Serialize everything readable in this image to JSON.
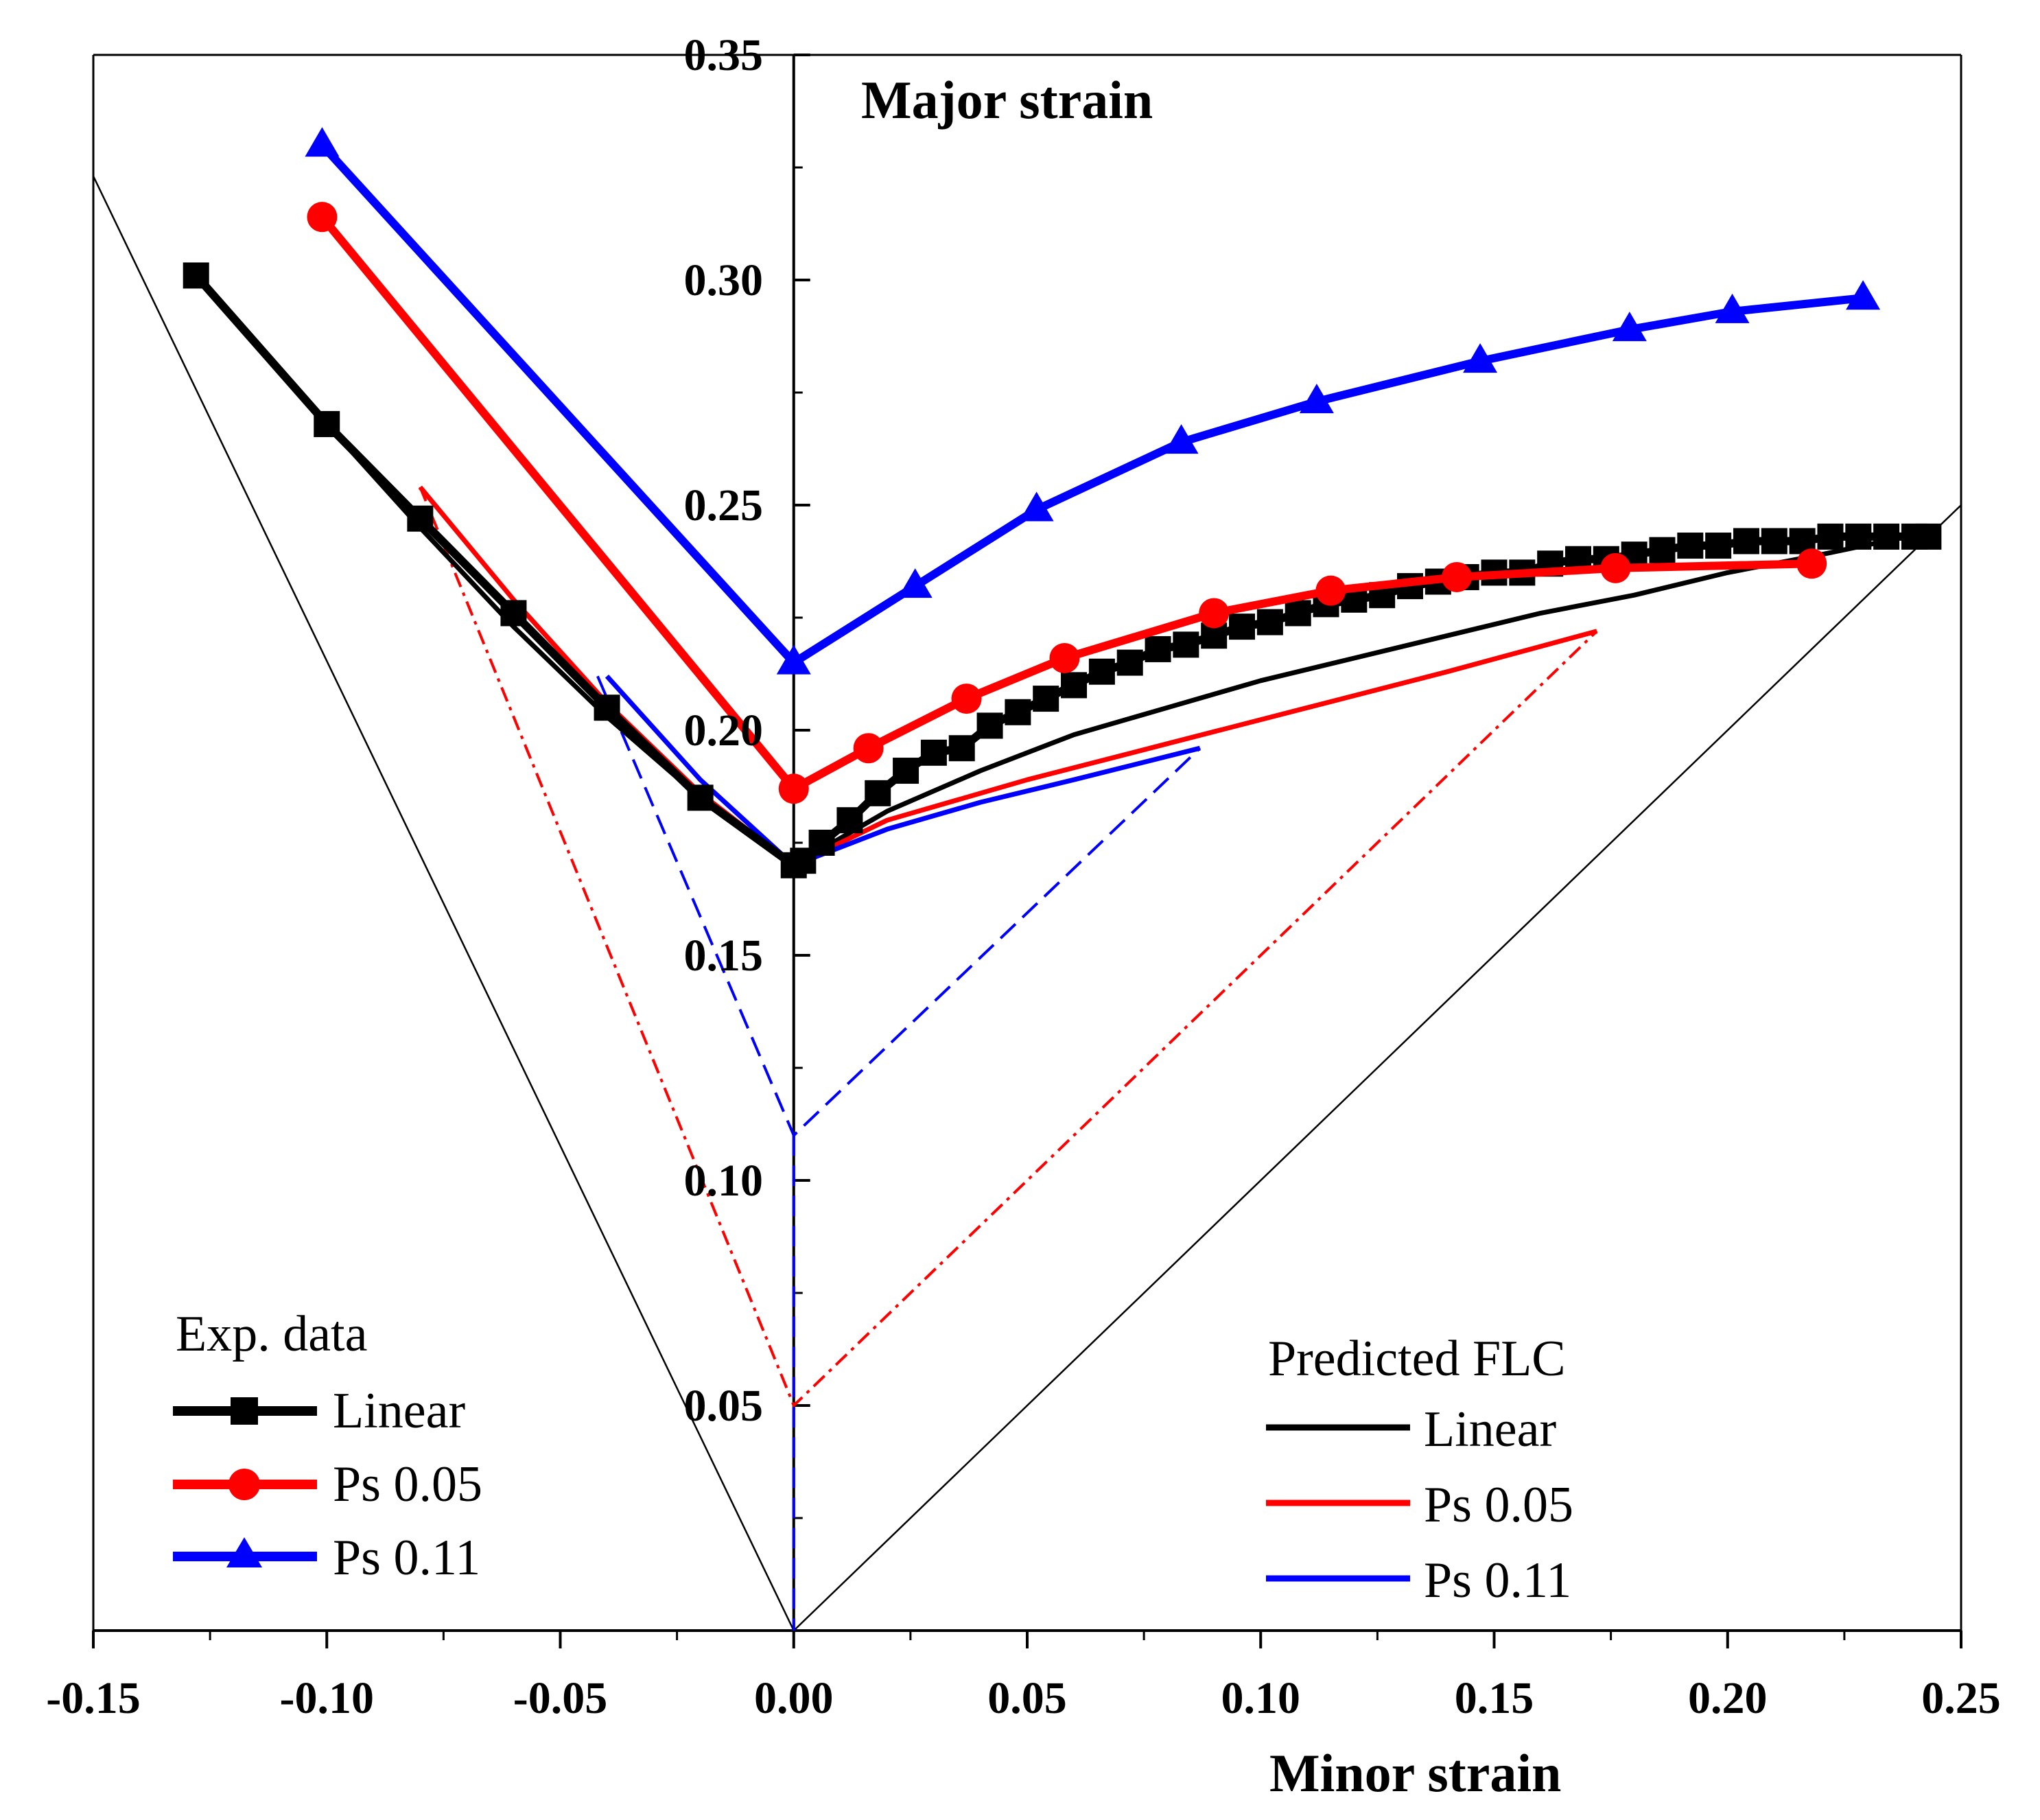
{
  "chart_data": {
    "type": "line",
    "xlabel": "Minor strain",
    "ylabel": "Major strain",
    "xlim": [
      -0.15,
      0.25
    ],
    "ylim": [
      0.0,
      0.35
    ],
    "x_ticks": [
      "-0.15",
      "-0.10",
      "-0.05",
      "0.00",
      "0.05",
      "0.10",
      "0.15",
      "0.20",
      "0.25"
    ],
    "y_ticks": [
      "0.05",
      "0.10",
      "0.15",
      "0.20",
      "0.25",
      "0.30",
      "0.35"
    ],
    "x_tick_values": [
      -0.15,
      -0.1,
      -0.05,
      0.0,
      0.05,
      0.1,
      0.15,
      0.2,
      0.25
    ],
    "y_tick_values": [
      0.05,
      0.1,
      0.15,
      0.2,
      0.25,
      0.3,
      0.35
    ],
    "grid": false,
    "legends": [
      {
        "title": "Exp. data",
        "placement": "bottom-left",
        "entries": [
          "Linear",
          "Ps 0.05",
          "Ps 0.11"
        ]
      },
      {
        "title": "Predicted FLC",
        "placement": "bottom-right",
        "entries": [
          "Linear",
          "Ps 0.05",
          "Ps 0.11"
        ]
      }
    ],
    "colors": {
      "linear": "#000000",
      "ps005": "#ff0000",
      "ps011": "#0000ff"
    },
    "exp_series": [
      {
        "name": "Linear",
        "color": "#000000",
        "marker": "square",
        "points": [
          [
            -0.128,
            0.301
          ],
          [
            -0.1,
            0.268
          ],
          [
            -0.08,
            0.247
          ],
          [
            -0.06,
            0.226
          ],
          [
            -0.04,
            0.205
          ],
          [
            -0.02,
            0.185
          ],
          [
            0.0,
            0.17
          ],
          [
            0.002,
            0.171
          ],
          [
            0.006,
            0.175
          ],
          [
            0.012,
            0.18
          ],
          [
            0.018,
            0.186
          ],
          [
            0.024,
            0.191
          ],
          [
            0.03,
            0.195
          ],
          [
            0.036,
            0.196
          ],
          [
            0.042,
            0.201
          ],
          [
            0.048,
            0.204
          ],
          [
            0.054,
            0.207
          ],
          [
            0.06,
            0.21
          ],
          [
            0.066,
            0.213
          ],
          [
            0.072,
            0.215
          ],
          [
            0.078,
            0.218
          ],
          [
            0.084,
            0.219
          ],
          [
            0.09,
            0.221
          ],
          [
            0.096,
            0.223
          ],
          [
            0.102,
            0.224
          ],
          [
            0.108,
            0.226
          ],
          [
            0.114,
            0.228
          ],
          [
            0.12,
            0.229
          ],
          [
            0.126,
            0.23
          ],
          [
            0.132,
            0.232
          ],
          [
            0.138,
            0.233
          ],
          [
            0.144,
            0.234
          ],
          [
            0.15,
            0.235
          ],
          [
            0.156,
            0.235
          ],
          [
            0.162,
            0.237
          ],
          [
            0.168,
            0.238
          ],
          [
            0.174,
            0.238
          ],
          [
            0.18,
            0.239
          ],
          [
            0.186,
            0.24
          ],
          [
            0.192,
            0.241
          ],
          [
            0.198,
            0.241
          ],
          [
            0.204,
            0.242
          ],
          [
            0.21,
            0.242
          ],
          [
            0.216,
            0.242
          ],
          [
            0.222,
            0.243
          ],
          [
            0.228,
            0.243
          ],
          [
            0.234,
            0.243
          ],
          [
            0.24,
            0.243
          ],
          [
            0.243,
            0.243
          ]
        ]
      },
      {
        "name": "Ps 0.05",
        "color": "#ff0000",
        "marker": "circle",
        "points": [
          [
            -0.101,
            0.314
          ],
          [
            0.0,
            0.187
          ],
          [
            0.016,
            0.196
          ],
          [
            0.037,
            0.207
          ],
          [
            0.058,
            0.216
          ],
          [
            0.09,
            0.226
          ],
          [
            0.115,
            0.231
          ],
          [
            0.142,
            0.234
          ],
          [
            0.176,
            0.236
          ],
          [
            0.218,
            0.237
          ]
        ]
      },
      {
        "name": "Ps 0.11",
        "color": "#0000ff",
        "marker": "triangle",
        "points": [
          [
            -0.101,
            0.33
          ],
          [
            0.0,
            0.215
          ],
          [
            0.026,
            0.232
          ],
          [
            0.052,
            0.249
          ],
          [
            0.083,
            0.264
          ],
          [
            0.112,
            0.273
          ],
          [
            0.147,
            0.282
          ],
          [
            0.179,
            0.289
          ],
          [
            0.201,
            0.293
          ],
          [
            0.229,
            0.296
          ]
        ]
      }
    ],
    "predicted_series": [
      {
        "name": "Linear",
        "color": "#000000",
        "points": [
          [
            -0.128,
            0.301
          ],
          [
            -0.1,
            0.268
          ],
          [
            -0.08,
            0.245
          ],
          [
            -0.06,
            0.223
          ],
          [
            -0.04,
            0.203
          ],
          [
            -0.02,
            0.185
          ],
          [
            0.0,
            0.17
          ],
          [
            0.02,
            0.182
          ],
          [
            0.04,
            0.191
          ],
          [
            0.06,
            0.199
          ],
          [
            0.08,
            0.205
          ],
          [
            0.1,
            0.211
          ],
          [
            0.12,
            0.216
          ],
          [
            0.14,
            0.221
          ],
          [
            0.16,
            0.226
          ],
          [
            0.18,
            0.23
          ],
          [
            0.2,
            0.235
          ],
          [
            0.22,
            0.239
          ],
          [
            0.243,
            0.244
          ]
        ]
      },
      {
        "name": "Ps 0.05",
        "color": "#ff0000",
        "points": [
          [
            -0.08,
            0.254
          ],
          [
            -0.06,
            0.229
          ],
          [
            -0.04,
            0.206
          ],
          [
            -0.02,
            0.186
          ],
          [
            0.0,
            0.17
          ],
          [
            0.02,
            0.18
          ],
          [
            0.05,
            0.189
          ],
          [
            0.08,
            0.197
          ],
          [
            0.11,
            0.205
          ],
          [
            0.14,
            0.213
          ],
          [
            0.172,
            0.222
          ]
        ]
      },
      {
        "name": "Ps 0.11",
        "color": "#0000ff",
        "points": [
          [
            -0.04,
            0.212
          ],
          [
            -0.02,
            0.189
          ],
          [
            0.0,
            0.17
          ],
          [
            0.02,
            0.178
          ],
          [
            0.04,
            0.184
          ],
          [
            0.06,
            0.189
          ],
          [
            0.087,
            0.196
          ]
        ]
      }
    ],
    "limit_paths": [
      {
        "name": "Ps 0.05",
        "color": "#ff0000",
        "dash": "dash-dot",
        "points": [
          [
            -0.08,
            0.254
          ],
          [
            0.0,
            0.05
          ],
          [
            0.172,
            0.222
          ]
        ]
      },
      {
        "name": "Ps 0.11",
        "color": "#0000ff",
        "dash": "dash",
        "points": [
          [
            -0.042,
            0.212
          ],
          [
            0.0,
            0.11
          ],
          [
            0.087,
            0.196
          ]
        ]
      },
      {
        "name": "Ps 0.11 axis",
        "color": "#0000ff",
        "dash": "dash",
        "points": [
          [
            0.0,
            0.11
          ],
          [
            0.0,
            0.0
          ]
        ]
      }
    ],
    "reference_lines": [
      {
        "name": "uniaxial",
        "color": "#000000",
        "points": [
          [
            0.0,
            0.0
          ],
          [
            -0.1625,
            0.35
          ]
        ]
      },
      {
        "name": "equibiaxial",
        "color": "#000000",
        "points": [
          [
            0.0,
            0.0
          ],
          [
            0.25,
            0.25
          ]
        ]
      }
    ]
  }
}
